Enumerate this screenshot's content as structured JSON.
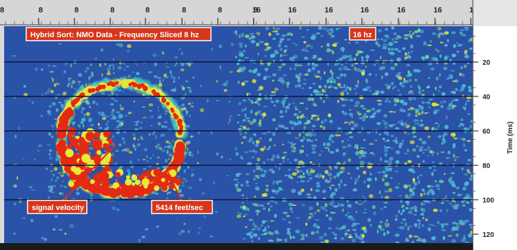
{
  "chart_data": {
    "type": "heatmap",
    "title": "Hybrid Sort: NMO Data - Frequency Sliced 8 hz",
    "panels": [
      {
        "frequency_label": "",
        "top_ticks": [
          "8",
          "8",
          "8",
          "8",
          "8",
          "8",
          "8"
        ]
      },
      {
        "frequency_label": "16 hz",
        "top_ticks": [
          "16",
          "16",
          "16",
          "16",
          "16",
          "16",
          "16"
        ]
      }
    ],
    "top_axis_partial_label": "8",
    "ylabel": "Time (ms)",
    "y_ticks": [
      20,
      40,
      60,
      80,
      100,
      120
    ],
    "ylim": [
      0,
      125
    ],
    "grid": true,
    "annotations": [
      {
        "text": "signal velocity"
      },
      {
        "text": "5414 feet/sec"
      }
    ],
    "colors": {
      "background": "#2a52a6",
      "noise_light": "#5fb2de",
      "noise_cyan": "#45c6ce",
      "noise_green": "#7ed68a",
      "noise_yellow": "#e6e83a",
      "signal": "#e42a12",
      "label_box": "#d6361a"
    }
  }
}
